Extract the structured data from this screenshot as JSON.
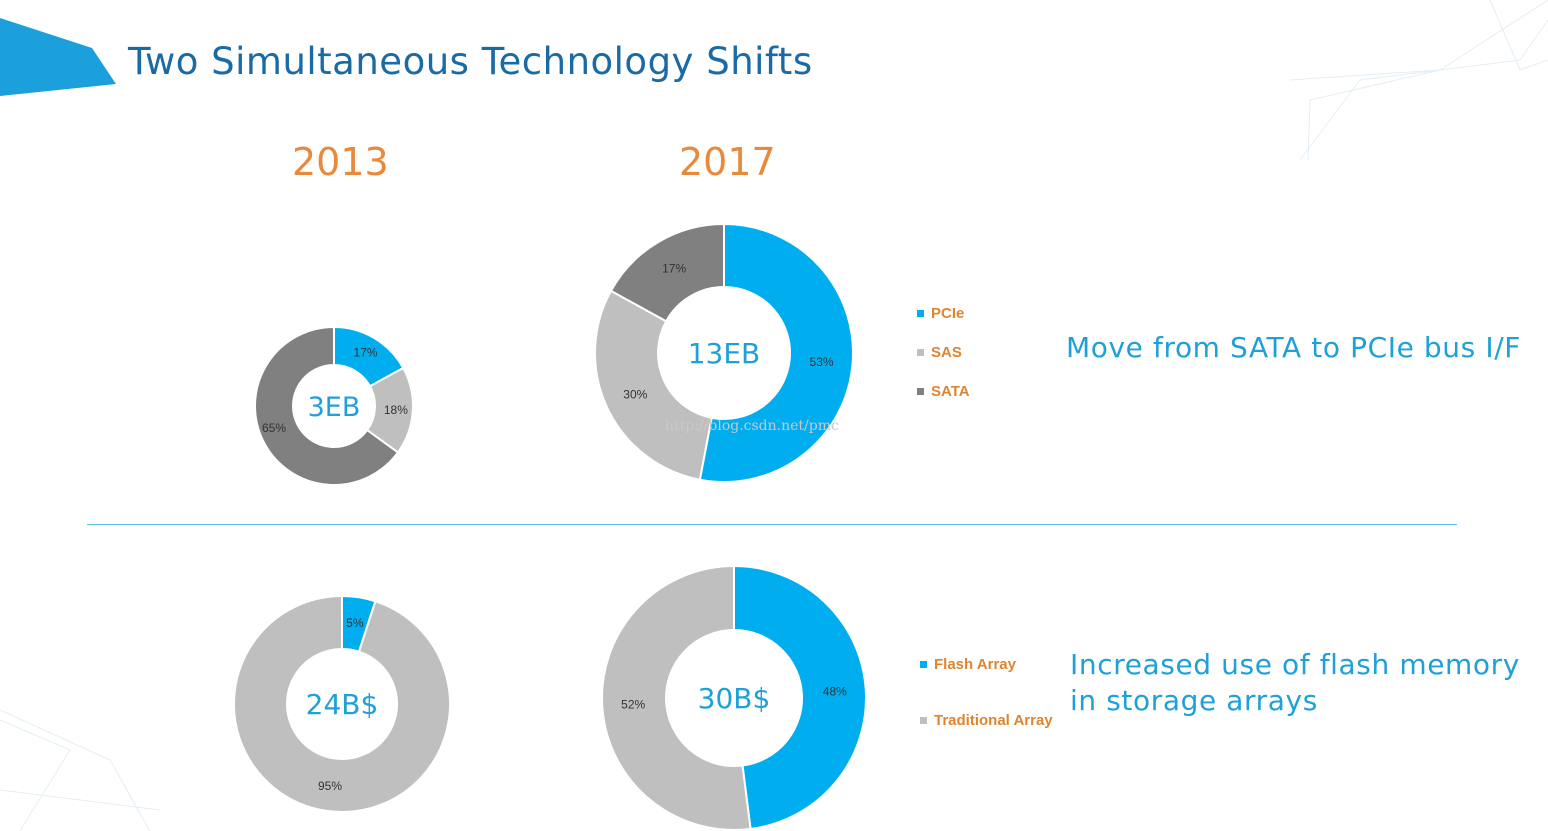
{
  "slide": {
    "title": "Two Simultaneous Technology Shifts",
    "years": [
      "2013",
      "2017"
    ],
    "watermark": "http://blog.csdn.net/pmc",
    "accent": "#1a6aa6"
  },
  "legend_top": [
    {
      "label": "PCIe",
      "color": "#00aeef"
    },
    {
      "label": "SAS",
      "color": "#bfbfbf"
    },
    {
      "label": "SATA",
      "color": "#808080"
    }
  ],
  "legend_bottom": [
    {
      "label": "Flash Array",
      "color": "#00aeef"
    },
    {
      "label": "Traditional Array",
      "color": "#bfbfbf"
    }
  ],
  "descriptions": {
    "top": "Move from SATA to PCIe bus I/F",
    "bottom_line1": "Increased use of flash memory",
    "bottom_line2": "in storage arrays"
  },
  "chart_data": [
    {
      "type": "pie",
      "donut": true,
      "year": "2013",
      "center_label": "3EB",
      "slices": [
        {
          "name": "PCIe",
          "value": 17,
          "label": "17%",
          "color": "#00aeef"
        },
        {
          "name": "SAS",
          "value": 18,
          "label": "18%",
          "color": "#bfbfbf"
        },
        {
          "name": "SATA",
          "value": 65,
          "label": "65%",
          "color": "#808080"
        }
      ]
    },
    {
      "type": "pie",
      "donut": true,
      "year": "2017",
      "center_label": "13EB",
      "slices": [
        {
          "name": "PCIe",
          "value": 53,
          "label": "53%",
          "color": "#00aeef"
        },
        {
          "name": "SAS",
          "value": 30,
          "label": "30%",
          "color": "#bfbfbf"
        },
        {
          "name": "SATA",
          "value": 17,
          "label": "17%",
          "color": "#808080"
        }
      ]
    },
    {
      "type": "pie",
      "donut": true,
      "year": "2013",
      "center_label": "24B$",
      "slices": [
        {
          "name": "Flash Array",
          "value": 5,
          "label": "5%",
          "color": "#00aeef"
        },
        {
          "name": "Traditional Array",
          "value": 95,
          "label": "95%",
          "color": "#bfbfbf"
        }
      ]
    },
    {
      "type": "pie",
      "donut": true,
      "year": "2017",
      "center_label": "30B$",
      "slices": [
        {
          "name": "Flash Array",
          "value": 48,
          "label": "48%",
          "color": "#00aeef"
        },
        {
          "name": "Traditional Array",
          "value": 52,
          "label": "52%",
          "color": "#bfbfbf"
        }
      ]
    }
  ]
}
